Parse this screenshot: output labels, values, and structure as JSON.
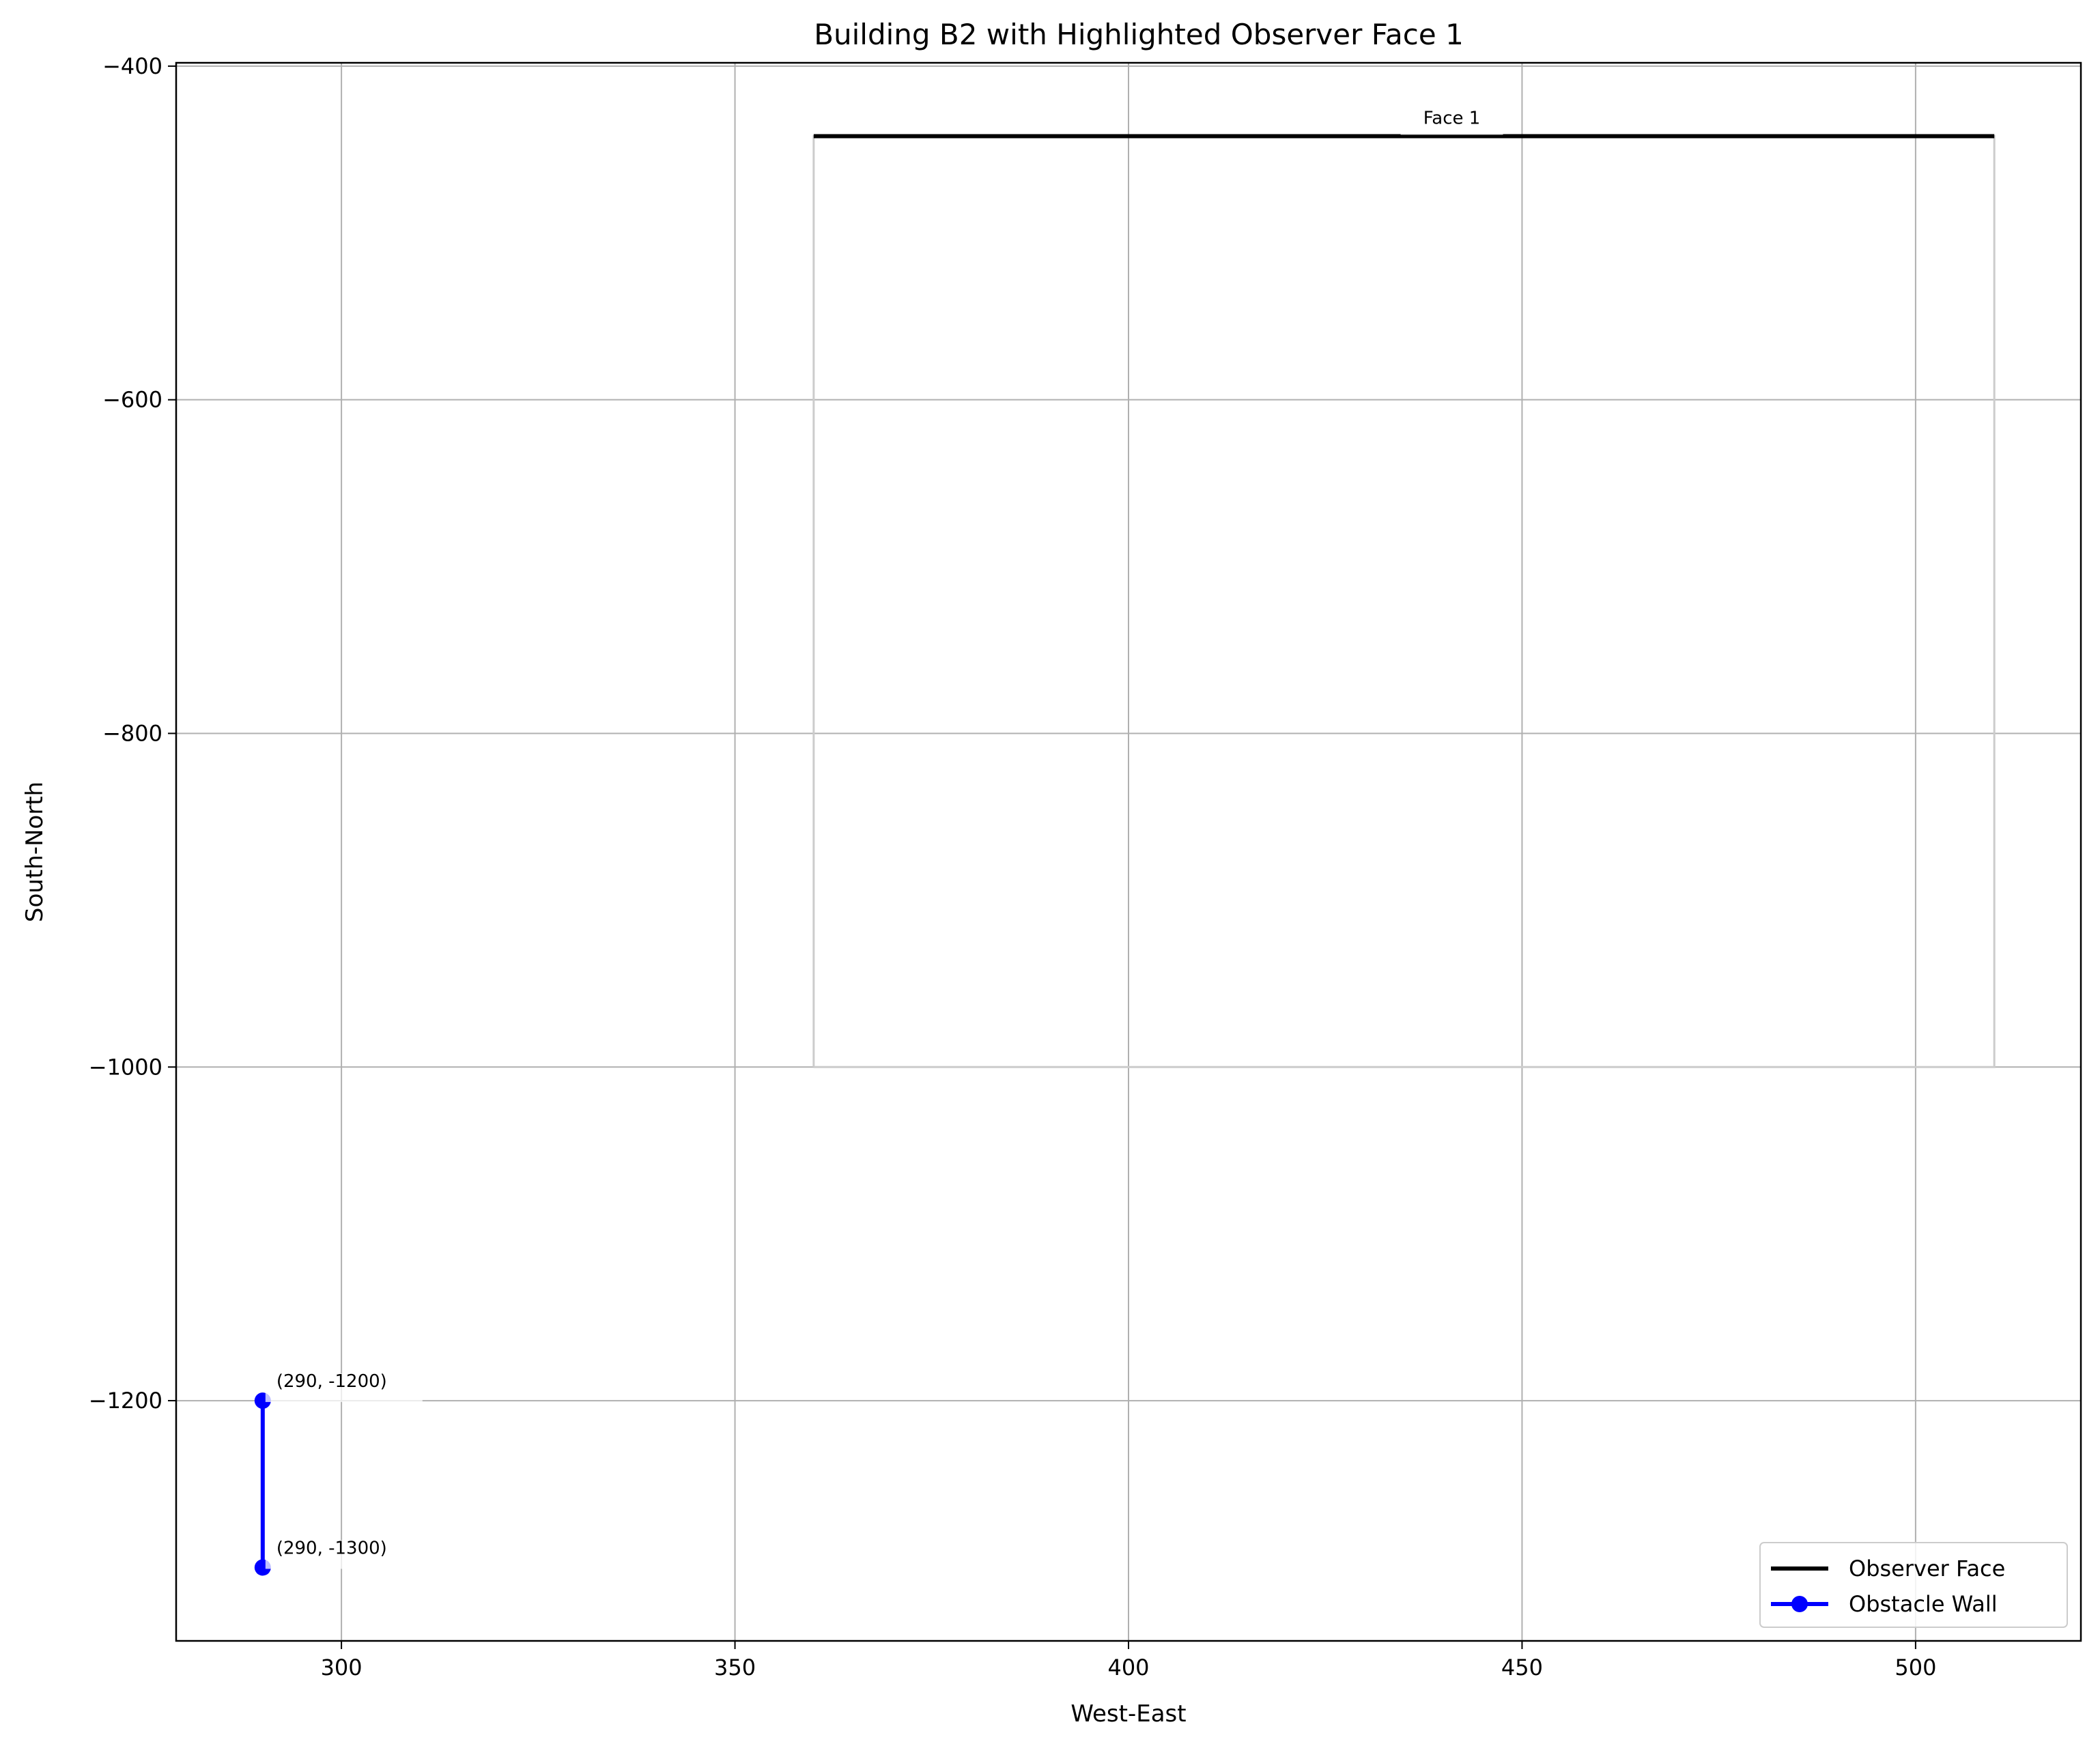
{
  "chart_data": {
    "type": "line",
    "title": "Building B2 with Highlighted Observer Face 1",
    "xlabel": "West-East",
    "ylabel": "South-North",
    "xlim": [
      279,
      521
    ],
    "ylim": [
      -1344,
      -398
    ],
    "xticks": [
      300,
      350,
      400,
      450,
      500
    ],
    "yticks": [
      -400,
      -600,
      -800,
      -1000,
      -1200
    ],
    "grid": true,
    "legend_position": "lower-right",
    "building_outline": {
      "color": "#cccccc",
      "points": [
        [
          360,
          -1000
        ],
        [
          360,
          -442
        ],
        [
          510,
          -442
        ],
        [
          510,
          -1000
        ],
        [
          360,
          -1000
        ]
      ]
    },
    "series": [
      {
        "name": "Observer Face",
        "color": "#000000",
        "marker": "none",
        "points": [
          [
            360,
            -442
          ],
          [
            510,
            -442
          ]
        ]
      },
      {
        "name": "Obstacle Wall",
        "color": "#0000ff",
        "marker": "circle",
        "points": [
          [
            290,
            -1200
          ],
          [
            290,
            -1300
          ]
        ]
      }
    ],
    "annotations": [
      {
        "text": "Face 1",
        "x": 435,
        "y": -442,
        "style": "face"
      },
      {
        "text": "(290, -1200)",
        "x": 290,
        "y": -1200,
        "style": "point"
      },
      {
        "text": "(290, -1300)",
        "x": 290,
        "y": -1300,
        "style": "point"
      }
    ]
  }
}
